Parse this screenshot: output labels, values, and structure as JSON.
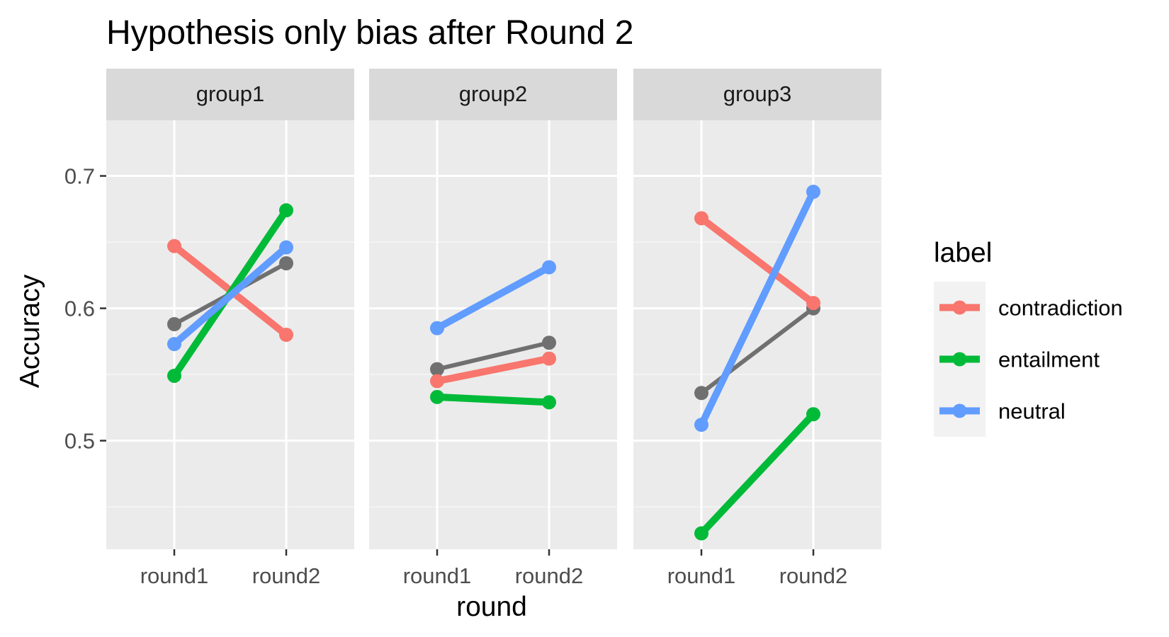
{
  "chart_data": {
    "type": "line",
    "title": "Hypothesis only bias after Round 2",
    "xlabel": "round",
    "ylabel": "Accuracy",
    "categories": [
      "round1",
      "round2"
    ],
    "ylim": [
      0.418,
      0.742
    ],
    "yticks": [
      0.5,
      0.6,
      0.7
    ],
    "ytick_labels": [
      "0.5",
      "0.6",
      "0.7"
    ],
    "grid": true,
    "legend": {
      "title": "label",
      "position": "right",
      "entries": [
        "contradiction",
        "entailment",
        "neutral"
      ]
    },
    "facets": [
      {
        "name": "group1",
        "series": [
          {
            "label": "contradiction",
            "values": [
              0.647,
              0.58
            ]
          },
          {
            "label": "entailment",
            "values": [
              0.549,
              0.674
            ]
          },
          {
            "label": "neutral",
            "values": [
              0.573,
              0.646
            ]
          },
          {
            "label": "",
            "values": [
              0.588,
              0.634
            ]
          }
        ]
      },
      {
        "name": "group2",
        "series": [
          {
            "label": "contradiction",
            "values": [
              0.545,
              0.562
            ]
          },
          {
            "label": "entailment",
            "values": [
              0.533,
              0.529
            ]
          },
          {
            "label": "neutral",
            "values": [
              0.585,
              0.631
            ]
          },
          {
            "label": "",
            "values": [
              0.554,
              0.574
            ]
          }
        ]
      },
      {
        "name": "group3",
        "series": [
          {
            "label": "contradiction",
            "values": [
              0.668,
              0.604
            ]
          },
          {
            "label": "entailment",
            "values": [
              0.43,
              0.52
            ]
          },
          {
            "label": "neutral",
            "values": [
              0.512,
              0.688
            ]
          },
          {
            "label": "",
            "values": [
              0.536,
              0.6
            ]
          }
        ]
      }
    ],
    "colors": {
      "contradiction": "#F8766D",
      "entailment": "#00BA38",
      "neutral": "#619CFF",
      "overall": "#707070"
    }
  }
}
